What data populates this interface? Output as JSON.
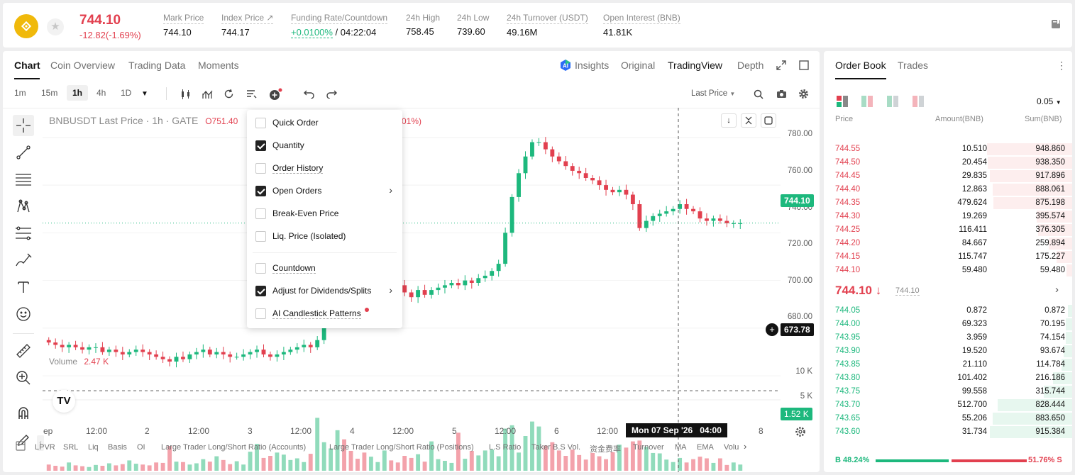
{
  "header": {
    "last_price": "744.10",
    "change": "-12.82(-1.69%)",
    "stats": [
      {
        "label": "Mark Price",
        "value": "744.10"
      },
      {
        "label": "Index Price ↗",
        "value": "744.17"
      },
      {
        "label": "Funding Rate/Countdown",
        "value_green": "+0.0100%",
        "value_rest": " / 04:22:04"
      },
      {
        "label": "24h High",
        "value": "758.45"
      },
      {
        "label": "24h Low",
        "value": "739.60"
      },
      {
        "label": "24h Turnover (USDT)",
        "value": "49.16M"
      },
      {
        "label": "Open Interest (BNB)",
        "value": "41.81K"
      }
    ]
  },
  "chart_tabs": [
    "Chart",
    "Coin Overview",
    "Trading Data",
    "Moments"
  ],
  "view_tabs": {
    "insights": "Insights",
    "original": "Original",
    "tradingview": "TradingView",
    "depth": "Depth"
  },
  "timeframes": [
    "1m",
    "15m",
    "1h",
    "4h",
    "1D"
  ],
  "price_type": "Last Price",
  "legend": {
    "symbol": "BNBUSDT Last Price · 1h · GATE",
    "open": "O751.40",
    "tail": "01%)"
  },
  "volume": {
    "label": "Volume",
    "value": "2.47 K"
  },
  "price_axis": [
    "780.00",
    "760.00",
    "740.00",
    "720.00",
    "700.00",
    "680.00"
  ],
  "volume_axis": [
    "10 K",
    "5 K"
  ],
  "price_tag": "744.10",
  "crosshair_tag": "673.78",
  "volume_tag": "1.52 K",
  "time_axis": [
    "ep",
    "12:00",
    "2",
    "12:00",
    "3",
    "12:00",
    "4",
    "12:00",
    "5",
    "12:00",
    "6",
    "12:00",
    "8"
  ],
  "crosshair_time": "Mon 07 Sep '26   04:00",
  "bottom_indicators": [
    "LPVR",
    "SRL",
    "Liq",
    "Basis",
    "OI",
    "Large Trader Long/Short Ratio (Accounts)",
    "Large Trader Long/Short Ratio (Positions)",
    "L.S Ratio",
    "Taker B.S Vol.",
    "资金费率",
    "Turnover",
    "MA",
    "EMA",
    "Volu"
  ],
  "dropdown": [
    {
      "label": "Quick Order",
      "checked": false,
      "arrow": false
    },
    {
      "label": "Quantity",
      "checked": true,
      "arrow": false
    },
    {
      "label": "Order History",
      "checked": false,
      "arrow": false
    },
    {
      "label": "Open Orders",
      "checked": true,
      "arrow": true
    },
    {
      "label": "Break-Even Price",
      "checked": false,
      "arrow": false
    },
    {
      "label": "Liq. Price (Isolated)",
      "checked": false,
      "arrow": false
    },
    {
      "label": "Countdown",
      "checked": false,
      "arrow": false
    },
    {
      "label": "Adjust for Dividends/Splits",
      "checked": true,
      "arrow": true
    },
    {
      "label": "AI Candlestick Patterns",
      "checked": false,
      "arrow": false,
      "dot": true
    }
  ],
  "orderbook": {
    "tabs": [
      "Order Book",
      "Trades"
    ],
    "precision": "0.05",
    "headers": {
      "price": "Price",
      "amount": "Amount(BNB)",
      "sum": "Sum(BNB)"
    },
    "asks": [
      [
        "744.55",
        "10.510",
        "948.860"
      ],
      [
        "744.50",
        "20.454",
        "938.350"
      ],
      [
        "744.45",
        "29.835",
        "917.896"
      ],
      [
        "744.40",
        "12.863",
        "888.061"
      ],
      [
        "744.35",
        "479.624",
        "875.198"
      ],
      [
        "744.30",
        "19.269",
        "395.574"
      ],
      [
        "744.25",
        "116.411",
        "376.305"
      ],
      [
        "744.20",
        "84.667",
        "259.894"
      ],
      [
        "744.15",
        "115.747",
        "175.227"
      ],
      [
        "744.10",
        "59.480",
        "59.480"
      ]
    ],
    "mid_price": "744.10 ↓",
    "mid_mark": "744.10",
    "bids": [
      [
        "744.05",
        "0.872",
        "0.872"
      ],
      [
        "744.00",
        "69.323",
        "70.195"
      ],
      [
        "743.95",
        "3.959",
        "74.154"
      ],
      [
        "743.90",
        "19.520",
        "93.674"
      ],
      [
        "743.85",
        "21.110",
        "114.784"
      ],
      [
        "743.80",
        "101.402",
        "216.186"
      ],
      [
        "743.75",
        "99.558",
        "315.744"
      ],
      [
        "743.70",
        "512.700",
        "828.444"
      ],
      [
        "743.65",
        "55.206",
        "883.650"
      ],
      [
        "743.60",
        "31.734",
        "915.384"
      ]
    ],
    "buy_ratio": "B 48.24%",
    "sell_ratio": "51.76% S"
  },
  "colors": {
    "up": "#1db87d",
    "down": "#e2404f",
    "accent": "#f0b90b"
  },
  "chart_data": {
    "type": "candlestick",
    "title": "BNBUSDT Last Price · 1h · GATE",
    "y_axis": [
      680,
      780
    ],
    "x_ticks": [
      "ep",
      "12:00",
      "2",
      "12:00",
      "3",
      "12:00",
      "4",
      "12:00",
      "5",
      "12:00",
      "6",
      "12:00",
      "8"
    ],
    "close_series": [
      694,
      693,
      692,
      693,
      692,
      691,
      692,
      692,
      690,
      691,
      690,
      689,
      690,
      691,
      690,
      689,
      688,
      687,
      686,
      688,
      687,
      689,
      690,
      691,
      689,
      690,
      689,
      688,
      688,
      689,
      690,
      691,
      689,
      688,
      689,
      690,
      691,
      692,
      693,
      692,
      695,
      705,
      712,
      725,
      722,
      720,
      718,
      716,
      719,
      721,
      725,
      722,
      718,
      715,
      713,
      716,
      714,
      716,
      717,
      718,
      719,
      718,
      720,
      719,
      721,
      722,
      724,
      727,
      740,
      755,
      765,
      772,
      778,
      778,
      775,
      772,
      770,
      768,
      766,
      765,
      763,
      762,
      760,
      758,
      757,
      758,
      756,
      752,
      742,
      745,
      747,
      748,
      749,
      750,
      752,
      750,
      749,
      746,
      745,
      746,
      745,
      744,
      744,
      744
    ],
    "volume_series": [
      1.5,
      1.2,
      1.0,
      2.0,
      1.3,
      1.1,
      0.9,
      1.4,
      1.2,
      1.8,
      1.3,
      1.6,
      2.5,
      1.7,
      1.5,
      1.3,
      2.0,
      1.9,
      6.0,
      2.2,
      2.1,
      1.5,
      1.8,
      2.8,
      2.2,
      3.5,
      2.6,
      1.6,
      2.3,
      1.5,
      4.6,
      6.5,
      3.1,
      3.6,
      4.4,
      3.9,
      2.6,
      3.0,
      2.1,
      4.1,
      12.8,
      6.9,
      5.4,
      9.8,
      7.6,
      4.8,
      2.9,
      4.4,
      3.4,
      2.1,
      4.9,
      2.5,
      2.0,
      3.6,
      3.1,
      4.0,
      2.2,
      7.1,
      2.8,
      2.4,
      1.9,
      9.2,
      2.9,
      4.8,
      3.7,
      4.9,
      5.1,
      3.5,
      10.2,
      11.0,
      4.4,
      8.4,
      11.9,
      10.7,
      6.1,
      6.9,
      4.9,
      3.6,
      5.1,
      3.8,
      2.7,
      4.3,
      3.5,
      2.8,
      4.5,
      6.3,
      5.6,
      7.1,
      7.3,
      5.8,
      4.3,
      4.2,
      2.7,
      2.1,
      3.1,
      2.0,
      2.8,
      3.4,
      3.0,
      1.9,
      3.0,
      1.4,
      2.0,
      1.5
    ],
    "volume_unit": "K",
    "volume_y_axis": [
      0,
      12
    ]
  }
}
